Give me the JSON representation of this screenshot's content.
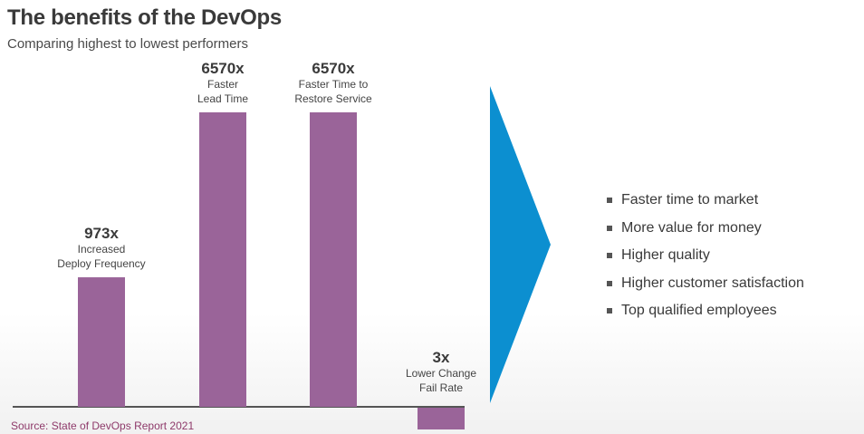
{
  "title": "The benefits of the DevOps",
  "subtitle": "Comparing highest to lowest performers",
  "source": "Source: State of DevOps Report 2021",
  "colors": {
    "bar": "#9a6499",
    "arrow": "#0c8fd0",
    "axis": "#555555"
  },
  "chart_data": {
    "type": "bar",
    "categories": [
      "Increased Deploy Frequency",
      "Faster Lead Time",
      "Faster Time to Restore Service",
      "Lower Change Fail Rate"
    ],
    "values": [
      973,
      6570,
      6570,
      3
    ],
    "value_labels": [
      "973x",
      "6570x",
      "6570x",
      "3x"
    ],
    "category_labels": [
      [
        "Increased",
        "Deploy Frequency"
      ],
      [
        "Faster",
        "Lead Time"
      ],
      [
        "Faster Time to",
        "Restore Service"
      ],
      [
        "Lower Change",
        "Fail Rate"
      ]
    ],
    "direction": [
      "up",
      "up",
      "up",
      "down"
    ],
    "title": "The benefits of the DevOps",
    "subtitle": "Comparing highest to lowest performers",
    "grid": false,
    "legend": "none"
  },
  "benefits": [
    "Faster time to market",
    "More value for money",
    "Higher quality",
    "Higher customer satisfaction",
    "Top qualified employees"
  ]
}
